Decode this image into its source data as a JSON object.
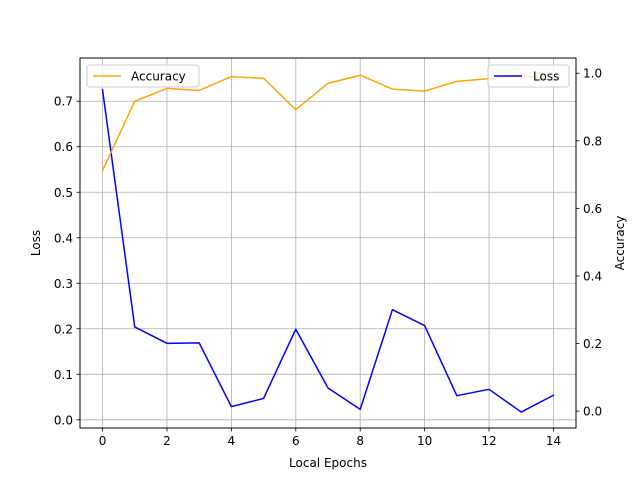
{
  "chart_data": {
    "type": "line",
    "title": "",
    "xlabel": "Local Epochs",
    "ylabel_left": "Loss",
    "ylabel_right": "Accuracy",
    "x": [
      0,
      1,
      2,
      3,
      4,
      5,
      6,
      7,
      8,
      9,
      10,
      11,
      12,
      13,
      14
    ],
    "xticks": [
      "0",
      "2",
      "4",
      "6",
      "8",
      "10",
      "12",
      "14"
    ],
    "xlim": [
      -0.7,
      14.7
    ],
    "ylim_left": [
      -0.018,
      0.795
    ],
    "ylim_right": [
      -0.05,
      1.045
    ],
    "yticks_left": [
      "0.0",
      "0.1",
      "0.2",
      "0.3",
      "0.4",
      "0.5",
      "0.6",
      "0.7"
    ],
    "yticks_right": [
      "0.0",
      "0.2",
      "0.4",
      "0.6",
      "0.8",
      "1.0"
    ],
    "grid": true,
    "series": [
      {
        "name": "Loss",
        "axis": "left",
        "color": "#0000ff",
        "values": [
          0.725,
          0.204,
          0.168,
          0.169,
          0.029,
          0.047,
          0.199,
          0.07,
          0.023,
          0.242,
          0.207,
          0.053,
          0.067,
          0.017,
          0.054
        ]
      },
      {
        "name": "Accuracy",
        "axis": "right",
        "color": "#ffa500",
        "values": [
          0.712,
          0.917,
          0.955,
          0.949,
          0.99,
          0.985,
          0.892,
          0.97,
          0.994,
          0.953,
          0.947,
          0.976,
          0.984,
          0.994,
          0.978
        ]
      }
    ],
    "legends": [
      {
        "position": "upper-left",
        "entry": "Accuracy"
      },
      {
        "position": "upper-right",
        "entry": "Loss"
      }
    ]
  }
}
